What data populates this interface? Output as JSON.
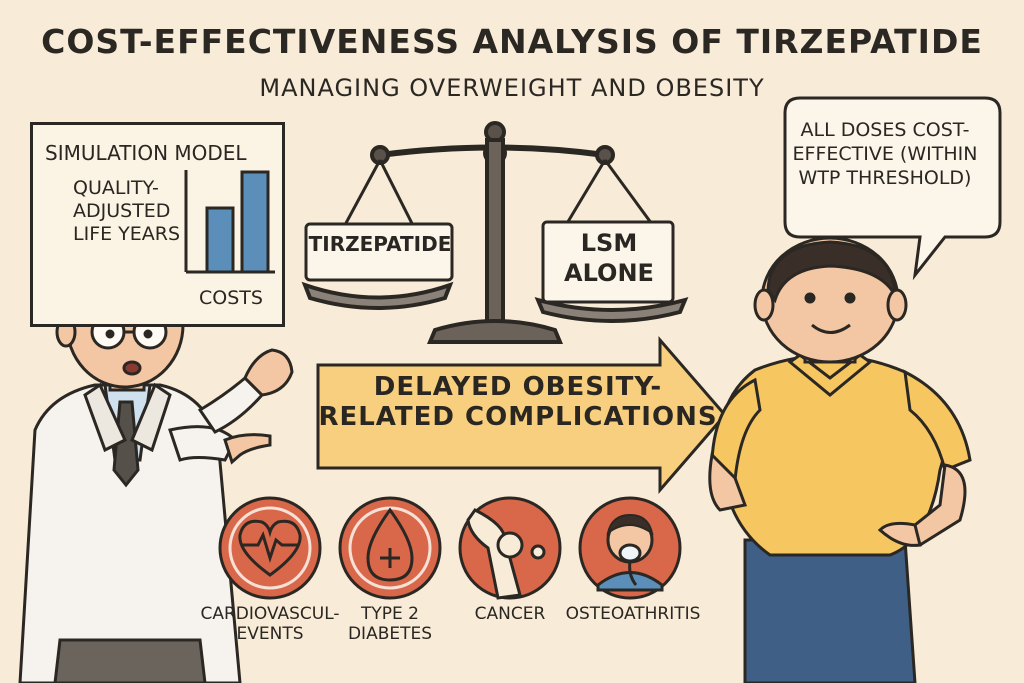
{
  "header": {
    "title": "COST-EFFECTIVENESS ANALYSIS OF TIRZEPATIDE",
    "subtitle": "MANAGING OVERWEIGHT AND OBESITY"
  },
  "simulation": {
    "title": "SIMULATION MODEL",
    "qaly_label": "QUALITY-ADJUSTED LIFE YEARS",
    "costs_label": "COSTS"
  },
  "scale": {
    "left_plate": "TIRZEPATIDE",
    "right_plate": "LSM ALONE"
  },
  "arrow": {
    "text": "DELAYED OBESITY-RELATED COMPLICATIONS"
  },
  "speech_bubble": {
    "text": "ALL DOSES COST-EFFECTIVE (WITHIN WTP THRESHOLD)"
  },
  "complications": [
    {
      "label": "CARDIOVASCUL- EVENTS",
      "icon": "heart-ecg-icon"
    },
    {
      "label": "TYPE 2 DIABETES",
      "icon": "blood-drop-icon"
    },
    {
      "label": "CANCER",
      "icon": "joint-icon"
    },
    {
      "label": "OSTEOATHRITIS",
      "icon": "patient-oxygen-mask-icon"
    }
  ],
  "colors": {
    "background": "#f8ecd8",
    "arrow_fill": "#f7cf7f",
    "icon_circle": "#d9674a",
    "bar_blue": "#5b8fb9",
    "shirt_yellow": "#f6c660",
    "pants_blue": "#3f5f86"
  }
}
